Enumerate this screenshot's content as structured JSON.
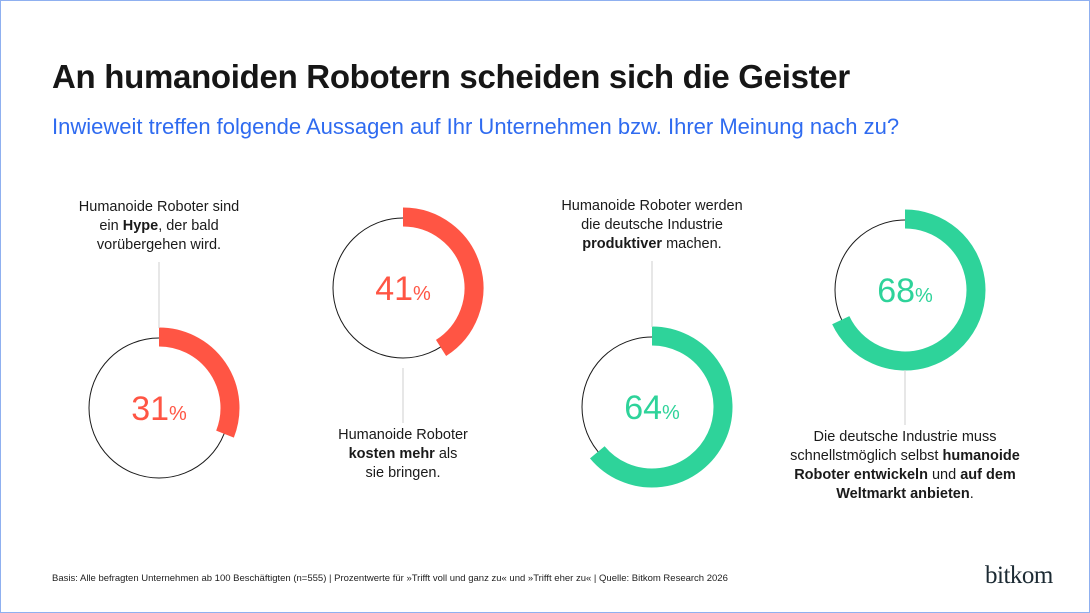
{
  "header": {
    "title": "An humanoiden Robotern scheiden sich die Geister",
    "subtitle": "Inwieweit treffen folgende Aussagen auf Ihr Unternehmen bzw. Ihrer Meinung nach zu?"
  },
  "chart_data": {
    "type": "donut",
    "unit": "%",
    "items": [
      {
        "value": 31,
        "color": "#ff5544",
        "label": [
          {
            "t": "Humanoide Roboter sind",
            "b": false
          },
          {
            "br": true
          },
          {
            "t": "ein ",
            "b": false
          },
          {
            "t": "Hype",
            "b": true
          },
          {
            "t": ", der bald",
            "b": false
          },
          {
            "br": true
          },
          {
            "t": "vorübergehen wird.",
            "b": false
          }
        ],
        "label_position": "above"
      },
      {
        "value": 41,
        "color": "#ff5544",
        "label": [
          {
            "t": "Humanoide Roboter",
            "b": false
          },
          {
            "br": true
          },
          {
            "t": "kosten mehr",
            "b": true
          },
          {
            "t": " als",
            "b": false
          },
          {
            "br": true
          },
          {
            "t": "sie bringen.",
            "b": false
          }
        ],
        "label_position": "below"
      },
      {
        "value": 64,
        "color": "#2ed39a",
        "label": [
          {
            "t": "Humanoide Roboter werden",
            "b": false
          },
          {
            "br": true
          },
          {
            "t": "die deutsche Industrie",
            "b": false
          },
          {
            "br": true
          },
          {
            "t": "produktiver",
            "b": true
          },
          {
            "t": " machen.",
            "b": false
          }
        ],
        "label_position": "above"
      },
      {
        "value": 68,
        "color": "#2ed39a",
        "label": [
          {
            "t": "Die deutsche Industrie muss",
            "b": false
          },
          {
            "br": true
          },
          {
            "t": "schnellstmöglich selbst ",
            "b": false
          },
          {
            "t": "humanoide",
            "b": true
          },
          {
            "br": true
          },
          {
            "t": "Roboter entwickeln",
            "b": true
          },
          {
            "t": " und ",
            "b": false
          },
          {
            "t": "auf dem",
            "b": true
          },
          {
            "br": true
          },
          {
            "t": "Weltmarkt anbieten",
            "b": true
          },
          {
            "t": ".",
            "b": false
          }
        ],
        "label_position": "below"
      }
    ]
  },
  "footer": {
    "note": "Basis: Alle befragten Unternehmen ab 100 Beschäftigten (n=555) | Prozentwerte für »Trifft voll und ganz zu« und »Trifft eher zu« | Quelle: Bitkom Research 2026",
    "logo": "bitkom"
  }
}
